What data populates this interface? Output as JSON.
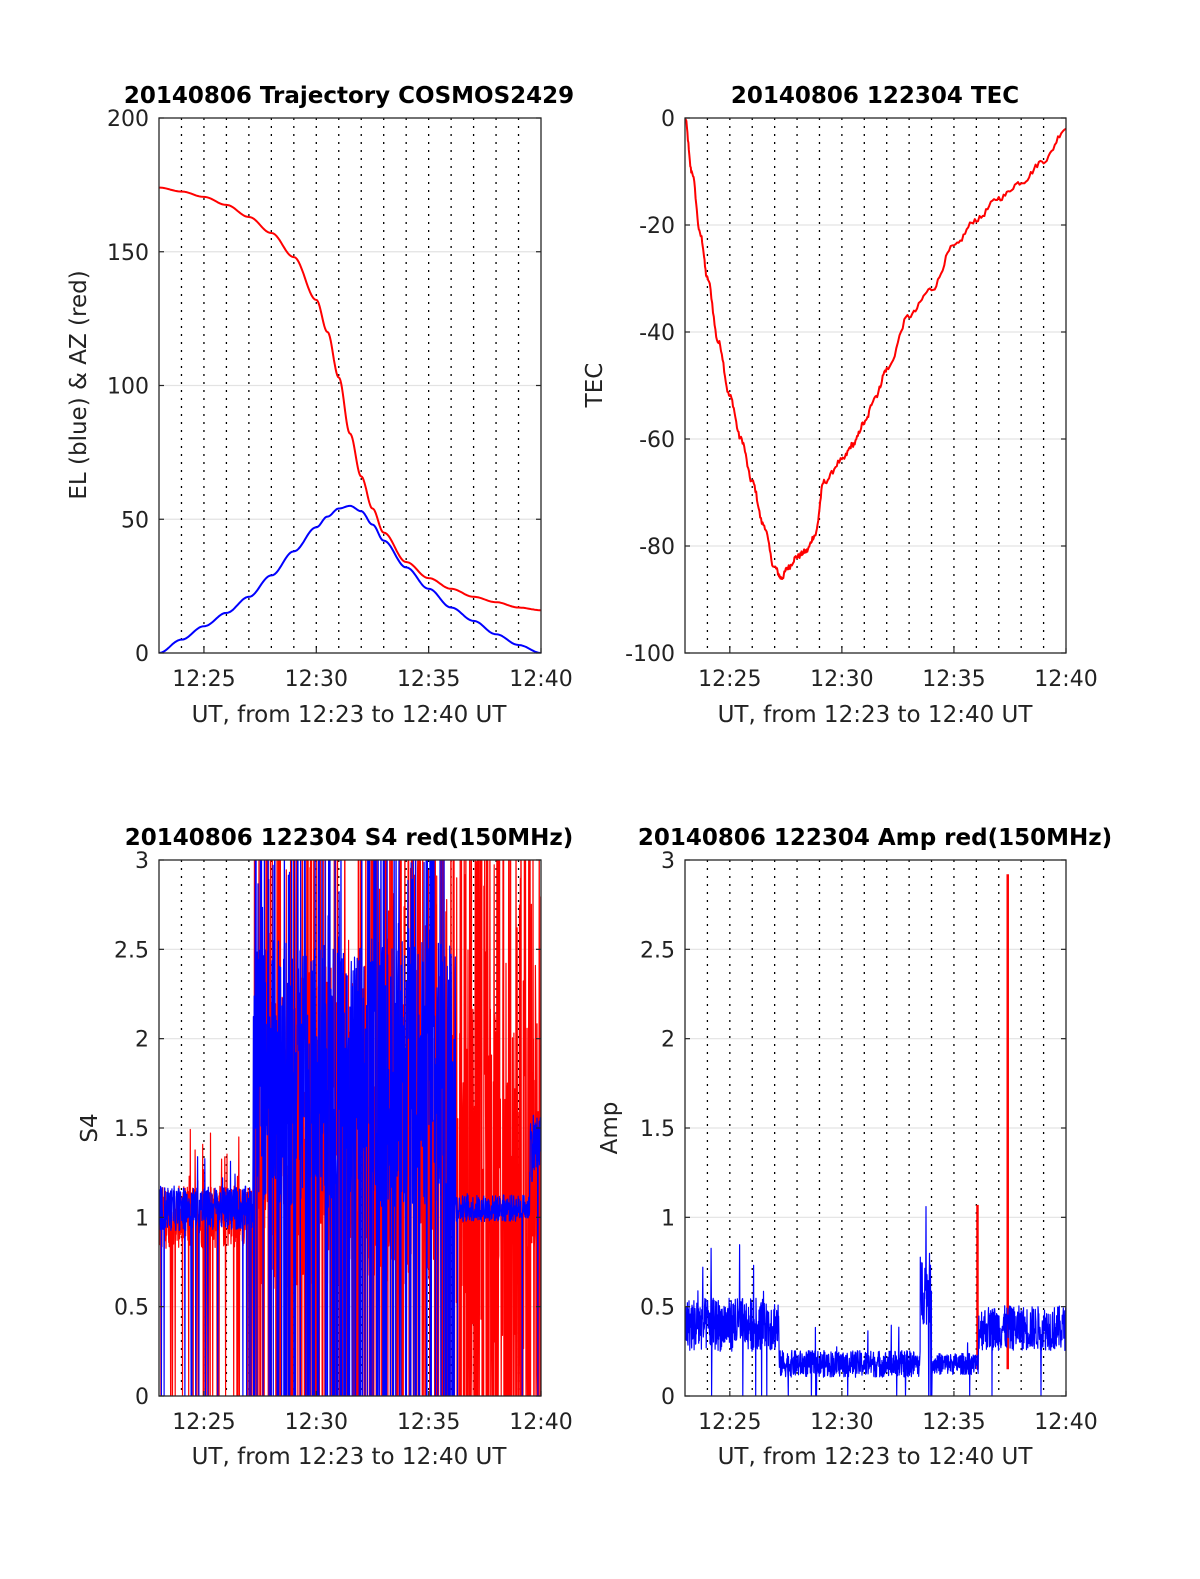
{
  "colors": {
    "el": "#0000ff",
    "az": "#ff0000",
    "tec": "#ff0000",
    "s4_red": "#ff0000",
    "s4_blue": "#0000ff",
    "amp_red": "#ff0000",
    "amp_blue": "#0000ff"
  },
  "chart_data": [
    {
      "id": "trajectory",
      "type": "line",
      "title": "20140806 Trajectory COSMOS2429",
      "xlabel": "UT, from 12:23 to 12:40 UT",
      "ylabel": "EL (blue) & AZ (red)",
      "xlim": [
        23,
        40
      ],
      "ylim": [
        0,
        200
      ],
      "xticks": [
        25,
        30,
        35,
        40
      ],
      "xtick_labels": [
        "12:25",
        "12:30",
        "12:35",
        "12:40"
      ],
      "yticks": [
        0,
        50,
        100,
        150,
        200
      ],
      "ytick_labels": [
        "0",
        "50",
        "100",
        "150",
        "200"
      ],
      "x_grid_minutes": [
        24,
        25,
        26,
        27,
        28,
        29,
        30,
        31,
        32,
        33,
        34,
        35,
        36,
        37,
        38,
        39
      ],
      "y_grid": [
        50,
        100,
        150
      ],
      "series": [
        {
          "name": "AZ (red)",
          "color": "#ff0000",
          "x": [
            23,
            24,
            25,
            26,
            27,
            28,
            29,
            30,
            30.5,
            31,
            31.5,
            32,
            32.5,
            33,
            34,
            35,
            36,
            37,
            38,
            39,
            40
          ],
          "y": [
            174,
            172.5,
            170.5,
            167.5,
            163,
            157,
            148,
            132,
            120,
            103,
            82,
            66,
            54,
            45,
            34,
            28,
            24,
            21,
            19,
            17,
            16
          ]
        },
        {
          "name": "EL (blue)",
          "color": "#0000ff",
          "x": [
            23,
            24,
            25,
            26,
            27,
            28,
            29,
            30,
            30.5,
            31,
            31.5,
            32,
            32.5,
            33,
            34,
            35,
            36,
            37,
            38,
            39,
            40
          ],
          "y": [
            0,
            5,
            10,
            15,
            21,
            29,
            38,
            47,
            51,
            54,
            55,
            53,
            48,
            42,
            32,
            24,
            17,
            12,
            7,
            3,
            0
          ]
        }
      ]
    },
    {
      "id": "tec",
      "type": "line",
      "title": "20140806 122304 TEC",
      "xlabel": "UT, from 12:23 to 12:40 UT",
      "ylabel": "TEC",
      "xlim": [
        23,
        40
      ],
      "ylim": [
        -100,
        0
      ],
      "xticks": [
        25,
        30,
        35,
        40
      ],
      "xtick_labels": [
        "12:25",
        "12:30",
        "12:35",
        "12:40"
      ],
      "yticks": [
        -100,
        -80,
        -60,
        -40,
        -20,
        0
      ],
      "ytick_labels": [
        "-100",
        "-80",
        "-60",
        "-40",
        "-20",
        "0"
      ],
      "x_grid_minutes": [
        24,
        25,
        26,
        27,
        28,
        29,
        30,
        31,
        32,
        33,
        34,
        35,
        36,
        37,
        38,
        39
      ],
      "y_grid": [
        -80,
        -60,
        -40,
        -20
      ],
      "series": [
        {
          "name": "TEC",
          "color": "#ff0000",
          "x": [
            23,
            23.3,
            23.7,
            24,
            24.5,
            25,
            25.5,
            26,
            26.5,
            27,
            27.3,
            27.6,
            28,
            28.4,
            28.8,
            29.2,
            30,
            30.5,
            31,
            31.5,
            32,
            33,
            34,
            35,
            36,
            37,
            38,
            39,
            40
          ],
          "y": [
            0,
            -10,
            -22,
            -30,
            -42,
            -52,
            -60,
            -68,
            -76,
            -84,
            -86,
            -84,
            -82,
            -81,
            -78,
            -68,
            -64,
            -61,
            -57,
            -52,
            -47,
            -37,
            -32,
            -24,
            -19,
            -15,
            -12,
            -8,
            -2
          ]
        }
      ]
    },
    {
      "id": "s4",
      "type": "line",
      "title": "20140806 122304 S4 red(150MHz)",
      "xlabel": "UT, from 12:23 to 12:40 UT",
      "ylabel": "S4",
      "xlim": [
        23,
        40
      ],
      "ylim": [
        0,
        3
      ],
      "xticks": [
        25,
        30,
        35,
        40
      ],
      "xtick_labels": [
        "12:25",
        "12:30",
        "12:35",
        "12:40"
      ],
      "yticks": [
        0,
        0.5,
        1,
        1.5,
        2,
        2.5,
        3
      ],
      "ytick_labels": [
        "0",
        "0.5",
        "1",
        "1.5",
        "2",
        "2.5",
        "3"
      ],
      "x_grid_minutes": [
        24,
        25,
        26,
        27,
        28,
        29,
        30,
        31,
        32,
        33,
        34,
        35,
        36,
        37,
        38,
        39
      ],
      "y_grid": [
        0.5,
        1,
        1.5,
        2,
        2.5
      ],
      "series": [
        {
          "name": "S4 red(150MHz)",
          "color": "#ff0000",
          "segments": [
            {
              "x0": 23,
              "x1": 27.2,
              "base": 1.0,
              "noise": 0.35,
              "spikes": 0.15
            },
            {
              "x0": 27.2,
              "x1": 36.2,
              "base": 1.5,
              "noise": 1.8,
              "spikes": 0.4
            },
            {
              "x0": 36.2,
              "x1": 40,
              "base": 1.2,
              "noise": 1.9,
              "spikes": 0.6
            }
          ]
        },
        {
          "name": "S4 blue",
          "color": "#0000ff",
          "segments": [
            {
              "x0": 23,
              "x1": 27.2,
              "base": 1.05,
              "noise": 0.25,
              "spikes": 0.05
            },
            {
              "x0": 27.2,
              "x1": 36.2,
              "base": 1.8,
              "noise": 1.5,
              "spikes": 0.3
            },
            {
              "x0": 36.2,
              "x1": 39.5,
              "base": 1.05,
              "noise": 0.15,
              "spikes": 0.02
            },
            {
              "x0": 39.5,
              "x1": 40,
              "base": 1.4,
              "noise": 0.4,
              "spikes": 0.05
            }
          ]
        }
      ]
    },
    {
      "id": "amp",
      "type": "line",
      "title": "20140806 122304 Amp red(150MHz)",
      "xlabel": "UT, from 12:23 to 12:40 UT",
      "ylabel": "Amp",
      "xlim": [
        23,
        40
      ],
      "ylim": [
        0,
        3
      ],
      "xticks": [
        25,
        30,
        35,
        40
      ],
      "xtick_labels": [
        "12:25",
        "12:30",
        "12:35",
        "12:40"
      ],
      "yticks": [
        0,
        0.5,
        1,
        1.5,
        2,
        2.5,
        3
      ],
      "ytick_labels": [
        "0",
        "0.5",
        "1",
        "1.5",
        "2",
        "2.5",
        "3"
      ],
      "x_grid_minutes": [
        24,
        25,
        26,
        27,
        28,
        29,
        30,
        31,
        32,
        33,
        34,
        35,
        36,
        37,
        38,
        39
      ],
      "y_grid": [
        0.5,
        1,
        1.5,
        2,
        2.5
      ],
      "series": [
        {
          "name": "Amp red(150MHz)",
          "color": "#ff0000",
          "spikes": [
            {
              "x": 36.05,
              "y": 1.07
            },
            {
              "x": 37.4,
              "y": 2.92
            }
          ]
        },
        {
          "name": "Amp blue",
          "color": "#0000ff",
          "segments": [
            {
              "x0": 23,
              "x1": 27.2,
              "base": 0.4,
              "noise": 0.3,
              "spikes": 0.05
            },
            {
              "x0": 27.2,
              "x1": 33.5,
              "base": 0.18,
              "noise": 0.15,
              "spikes": 0.02
            },
            {
              "x0": 33.5,
              "x1": 34,
              "base": 0.6,
              "noise": 0.4,
              "spikes": 0.05
            },
            {
              "x0": 34,
              "x1": 36.1,
              "base": 0.18,
              "noise": 0.12,
              "spikes": 0.02
            },
            {
              "x0": 36.1,
              "x1": 40,
              "base": 0.38,
              "noise": 0.25,
              "spikes": 0.03
            }
          ]
        }
      ]
    }
  ]
}
